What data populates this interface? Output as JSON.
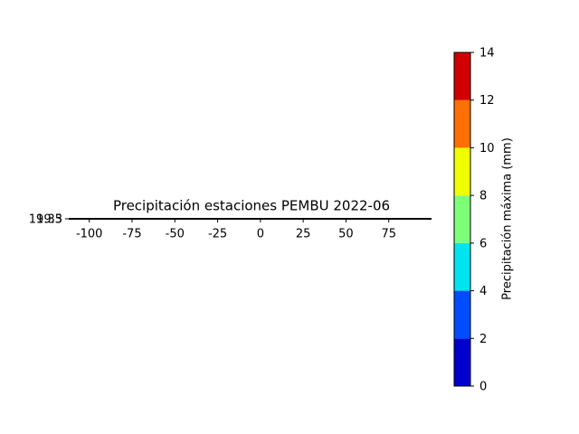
{
  "chart_data": {
    "type": "scatter",
    "title": "Precipitación estaciones PEMBU 2022-06",
    "xlim": [
      -112,
      100
    ],
    "xticks": [
      -100,
      -75,
      -50,
      -25,
      0,
      25,
      50,
      75
    ],
    "ylim": [
      19.3,
      19.35
    ],
    "yticks": [
      19.3,
      19.35
    ],
    "x": [],
    "values": [],
    "colorbar": {
      "label": "Precipitación máxima (mm)",
      "ticks": [
        0,
        2,
        4,
        6,
        8,
        10,
        12,
        14
      ],
      "colors": [
        "#0000cd",
        "#004cff",
        "#00e4f0",
        "#7dff7a",
        "#f0ff00",
        "#ff7000",
        "#d00000"
      ]
    }
  }
}
